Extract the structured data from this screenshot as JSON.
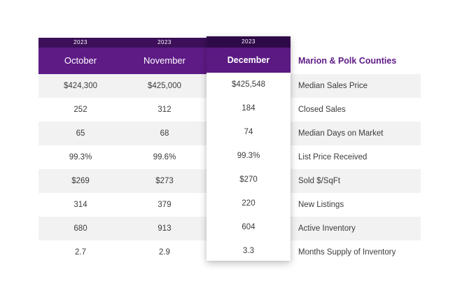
{
  "region_title": "Marion & Polk Counties",
  "columns": [
    {
      "year": "2023",
      "month": "October",
      "values": [
        "$424,300",
        "252",
        "65",
        "99.3%",
        "$269",
        "314",
        "680",
        "2.7"
      ]
    },
    {
      "year": "2023",
      "month": "November",
      "values": [
        "$425,000",
        "312",
        "68",
        "99.6%",
        "$273",
        "379",
        "913",
        "2.9"
      ]
    },
    {
      "year": "2023",
      "month": "December",
      "values": [
        "$425,548",
        "184",
        "74",
        "99.3%",
        "$270",
        "220",
        "604",
        "3.3"
      ]
    }
  ],
  "metrics": [
    "Median Sales Price",
    "Closed Sales",
    "Median Days on Market",
    "List Price Received",
    "Sold $/SqFt",
    "New Listings",
    "Active Inventory",
    "Months Supply of Inventory"
  ],
  "colors": {
    "header_purple": "#5e1b86",
    "year_band": "#3d0f5a",
    "row_shade": "#f2f2f2"
  }
}
